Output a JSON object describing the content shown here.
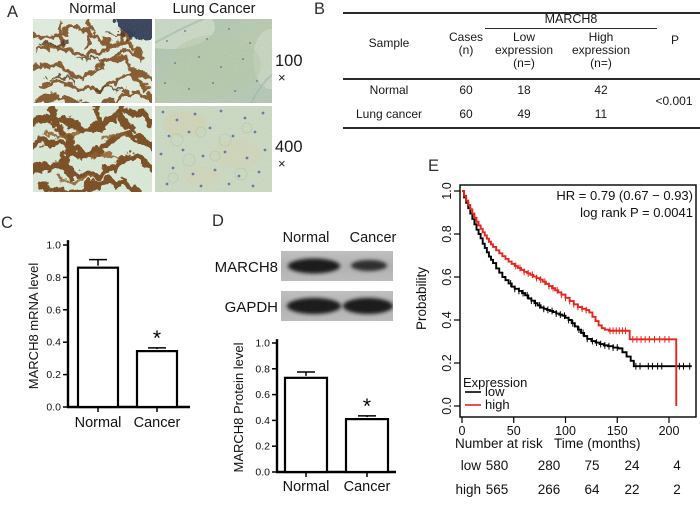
{
  "panels": {
    "a": {
      "label": "A",
      "columns": [
        "Normal",
        "Lung Cancer"
      ],
      "mags": [
        {
          "num": "100",
          "sym": "×"
        },
        {
          "num": "400",
          "sym": "×"
        }
      ]
    },
    "b": {
      "label": "B",
      "table": {
        "group": "MARCH8",
        "sample": "Sample",
        "cases1": "Cases",
        "cases2": "(n)",
        "low1": "Low",
        "low2": "expression",
        "low3": "(n=)",
        "high1": "High",
        "high2": "expression",
        "high3": "(n=)",
        "p": "P",
        "rows": [
          {
            "sample": "Normal",
            "cases": "60",
            "low": "18",
            "high": "42"
          },
          {
            "sample": "Lung cancer",
            "cases": "60",
            "low": "49",
            "high": "11"
          }
        ],
        "p_value": "<0.001"
      }
    },
    "c": {
      "label": "C"
    },
    "d": {
      "label": "D",
      "blot": {
        "cols": [
          "Normal",
          "Cancer"
        ],
        "bands": [
          "MARCH8",
          "GAPDH"
        ]
      }
    },
    "e": {
      "label": "E"
    }
  },
  "chart_data": [
    {
      "id": "chart-c",
      "type": "bar",
      "categories": [
        "Normal",
        "Cancer"
      ],
      "values": [
        0.86,
        0.345
      ],
      "errors": [
        0.05,
        0.02
      ],
      "sig": [
        "",
        "*"
      ],
      "ylabel": "MARCH8 mRNA level",
      "ylim": [
        0,
        1.0
      ],
      "yticks": [
        "0.0",
        "0.2",
        "0.4",
        "0.6",
        "0.8",
        "1.0"
      ]
    },
    {
      "id": "chart-d",
      "type": "bar",
      "categories": [
        "Normal",
        "Cancer"
      ],
      "values": [
        0.73,
        0.41
      ],
      "errors": [
        0.045,
        0.025
      ],
      "sig": [
        "",
        "*"
      ],
      "ylabel": "MARCH8 Protein level",
      "ylim": [
        0,
        1.0
      ],
      "yticks": [
        "0.0",
        "0.2",
        "0.4",
        "0.6",
        "0.8",
        "1.0"
      ]
    },
    {
      "id": "chart-e",
      "type": "line",
      "subtype": "kaplan-meier",
      "xlabel": "Time (months)",
      "ylabel": "Probability",
      "xlim": [
        0,
        232
      ],
      "ylim": [
        0,
        1.0
      ],
      "xticks": [
        0,
        50,
        100,
        150,
        200
      ],
      "yticks": [
        "0.0",
        "0.2",
        "0.4",
        "0.6",
        "0.8",
        "1.0"
      ],
      "annotations": [
        "HR = 0.79 (0.67 − 0.93)",
        "log rank P = 0.0041"
      ],
      "legend": {
        "title": "Expression",
        "entries": [
          {
            "label": "low",
            "color": "#000000"
          },
          {
            "label": "high",
            "color": "#e8251d"
          }
        ]
      },
      "series": [
        {
          "name": "low",
          "color": "#000000",
          "steps": [
            [
              0,
              1
            ],
            [
              2,
              0.97
            ],
            [
              4,
              0.945
            ],
            [
              6,
              0.92
            ],
            [
              8,
              0.895
            ],
            [
              10,
              0.87
            ],
            [
              12,
              0.845
            ],
            [
              14,
              0.82
            ],
            [
              16,
              0.8
            ],
            [
              18,
              0.78
            ],
            [
              20,
              0.755
            ],
            [
              22,
              0.735
            ],
            [
              24,
              0.715
            ],
            [
              26,
              0.695
            ],
            [
              28,
              0.68
            ],
            [
              30,
              0.665
            ],
            [
              33,
              0.64
            ],
            [
              36,
              0.62
            ],
            [
              39,
              0.6
            ],
            [
              42,
              0.585
            ],
            [
              45,
              0.57
            ],
            [
              48,
              0.555
            ],
            [
              51,
              0.545
            ],
            [
              55,
              0.535
            ],
            [
              58,
              0.525
            ],
            [
              61,
              0.515
            ],
            [
              64,
              0.5
            ],
            [
              67,
              0.49
            ],
            [
              70,
              0.478
            ],
            [
              73,
              0.468
            ],
            [
              76,
              0.458
            ],
            [
              79,
              0.452
            ],
            [
              82,
              0.447
            ],
            [
              85,
              0.442
            ],
            [
              88,
              0.437
            ],
            [
              91,
              0.43
            ],
            [
              94,
              0.425
            ],
            [
              97,
              0.42
            ],
            [
              100,
              0.41
            ],
            [
              103,
              0.4
            ],
            [
              106,
              0.385
            ],
            [
              109,
              0.37
            ],
            [
              112,
              0.355
            ],
            [
              115,
              0.34
            ],
            [
              118,
              0.325
            ],
            [
              121,
              0.312
            ],
            [
              125,
              0.302
            ],
            [
              129,
              0.295
            ],
            [
              133,
              0.288
            ],
            [
              137,
              0.282
            ],
            [
              141,
              0.278
            ],
            [
              146,
              0.272
            ],
            [
              151,
              0.268
            ],
            [
              155,
              0.25
            ],
            [
              159,
              0.23
            ],
            [
              163,
              0.21
            ],
            [
              166,
              0.185
            ],
            [
              222,
              0.185
            ]
          ],
          "censors": [
            47,
            51,
            55,
            59,
            63,
            67,
            71,
            75,
            79,
            83,
            87,
            91,
            95,
            99,
            103,
            107,
            113,
            117,
            121,
            126,
            130,
            134,
            138,
            142,
            146,
            150,
            168,
            172,
            180,
            184,
            189,
            193,
            210,
            214,
            220
          ]
        },
        {
          "name": "high",
          "color": "#e8251d",
          "steps": [
            [
              0,
              1
            ],
            [
              2,
              0.978
            ],
            [
              4,
              0.955
            ],
            [
              6,
              0.935
            ],
            [
              8,
              0.915
            ],
            [
              10,
              0.895
            ],
            [
              12,
              0.875
            ],
            [
              14,
              0.857
            ],
            [
              16,
              0.84
            ],
            [
              18,
              0.824
            ],
            [
              20,
              0.808
            ],
            [
              22,
              0.793
            ],
            [
              24,
              0.778
            ],
            [
              26,
              0.764
            ],
            [
              28,
              0.752
            ],
            [
              30,
              0.74
            ],
            [
              33,
              0.724
            ],
            [
              36,
              0.71
            ],
            [
              39,
              0.697
            ],
            [
              42,
              0.684
            ],
            [
              45,
              0.672
            ],
            [
              48,
              0.661
            ],
            [
              51,
              0.651
            ],
            [
              54,
              0.642
            ],
            [
              57,
              0.633
            ],
            [
              60,
              0.624
            ],
            [
              63,
              0.617
            ],
            [
              66,
              0.61
            ],
            [
              69,
              0.602
            ],
            [
              72,
              0.595
            ],
            [
              75,
              0.588
            ],
            [
              78,
              0.578
            ],
            [
              81,
              0.568
            ],
            [
              84,
              0.558
            ],
            [
              87,
              0.548
            ],
            [
              90,
              0.538
            ],
            [
              93,
              0.528
            ],
            [
              96,
              0.518
            ],
            [
              100,
              0.503
            ],
            [
              104,
              0.488
            ],
            [
              108,
              0.473
            ],
            [
              112,
              0.46
            ],
            [
              116,
              0.452
            ],
            [
              120,
              0.446
            ],
            [
              123,
              0.435
            ],
            [
              126,
              0.415
            ],
            [
              129,
              0.395
            ],
            [
              132,
              0.375
            ],
            [
              135,
              0.362
            ],
            [
              138,
              0.355
            ],
            [
              142,
              0.35
            ],
            [
              158,
              0.35
            ],
            [
              162,
              0.31
            ],
            [
              207,
              0.31
            ],
            [
              207,
              0
            ]
          ],
          "censors": [
            52,
            56,
            60,
            64,
            68,
            72,
            76,
            80,
            84,
            88,
            92,
            96,
            100,
            104,
            108,
            112,
            116,
            120,
            143,
            146,
            149,
            152,
            155,
            158,
            165,
            169,
            173,
            177,
            181,
            186,
            191,
            196,
            200
          ]
        }
      ],
      "risk": {
        "title_left": "Number at  risk",
        "title_right": "Time (months)",
        "rows": [
          {
            "label": "low",
            "color": "#000000",
            "values": [
              "580",
              "280",
              "75",
              "24",
              "4"
            ]
          },
          {
            "label": "high",
            "color": "#e8251d",
            "values": [
              "565",
              "266",
              "64",
              "22",
              "2"
            ]
          }
        ]
      }
    }
  ]
}
